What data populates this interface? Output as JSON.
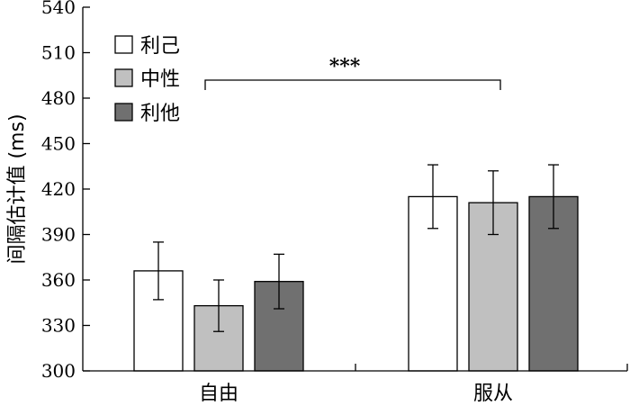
{
  "chart_data": {
    "type": "bar",
    "ylabel": "间隔估计值 (ms)",
    "xlabel": "",
    "title": "",
    "ylim": [
      300,
      540
    ],
    "yticks": [
      300,
      330,
      360,
      390,
      420,
      450,
      480,
      510,
      540
    ],
    "categories": [
      "自由",
      "服从"
    ],
    "series": [
      {
        "name": "利己",
        "color": "#ffffff",
        "values": [
          366,
          415
        ],
        "errors": [
          19,
          21
        ]
      },
      {
        "name": "中性",
        "color": "#c0c0c0",
        "values": [
          343,
          411
        ],
        "errors": [
          17,
          21
        ]
      },
      {
        "name": "利他",
        "color": "#707070",
        "values": [
          359,
          415
        ],
        "errors": [
          18,
          21
        ]
      }
    ],
    "legend_position": "top-left",
    "grid": false,
    "annotation": {
      "text": "***",
      "span": [
        "利己-自由",
        "利己-服从"
      ]
    }
  }
}
